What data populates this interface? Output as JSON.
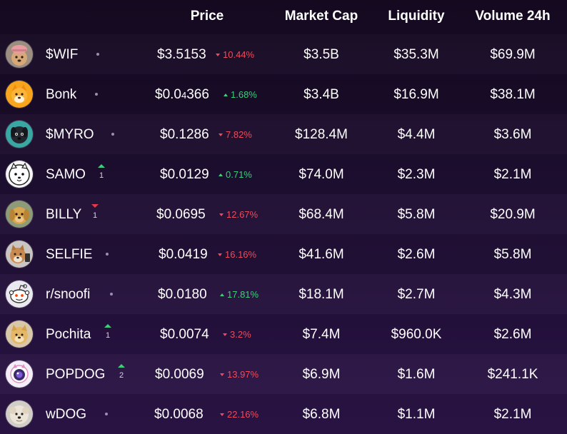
{
  "header": {
    "price": "Price",
    "market_cap": "Market Cap",
    "liquidity": "Liquidity",
    "volume": "Volume 24h"
  },
  "colors": {
    "up": "#3ccf7a",
    "down": "#ee4b5b",
    "neutral_dot": "#9a8fb0"
  },
  "rows": [
    {
      "name": "$WIF",
      "avatar_icon": "dog-with-hat-icon",
      "rank_change": {
        "dir": "none",
        "value": ""
      },
      "price_main": "$3.5153",
      "price_sub": "",
      "price_tail": "",
      "change_dir": "down",
      "change": "10.44%",
      "market_cap": "$3.5B",
      "liquidity": "$35.3M",
      "volume": "$69.9M"
    },
    {
      "name": "Bonk",
      "avatar_icon": "shiba-dog-icon",
      "rank_change": {
        "dir": "none",
        "value": ""
      },
      "price_main": "$0.0",
      "price_sub": "4",
      "price_tail": "366",
      "change_dir": "up",
      "change": "1.68%",
      "market_cap": "$3.4B",
      "liquidity": "$16.9M",
      "volume": "$38.1M"
    },
    {
      "name": "$MYRO",
      "avatar_icon": "black-dog-icon",
      "rank_change": {
        "dir": "none",
        "value": ""
      },
      "price_main": "$0.1286",
      "price_sub": "",
      "price_tail": "",
      "change_dir": "down",
      "change": "7.82%",
      "market_cap": "$128.4M",
      "liquidity": "$4.4M",
      "volume": "$3.6M"
    },
    {
      "name": "SAMO",
      "avatar_icon": "samoyed-dog-icon",
      "rank_change": {
        "dir": "up",
        "value": "1"
      },
      "price_main": "$0.0129",
      "price_sub": "",
      "price_tail": "",
      "change_dir": "up",
      "change": "0.71%",
      "market_cap": "$74.0M",
      "liquidity": "$2.3M",
      "volume": "$2.1M"
    },
    {
      "name": "BILLY",
      "avatar_icon": "golden-dog-icon",
      "rank_change": {
        "dir": "down",
        "value": "1"
      },
      "price_main": "$0.0695",
      "price_sub": "",
      "price_tail": "",
      "change_dir": "down",
      "change": "12.67%",
      "market_cap": "$68.4M",
      "liquidity": "$5.8M",
      "volume": "$20.9M"
    },
    {
      "name": "SELFIE",
      "avatar_icon": "dog-selfie-icon",
      "rank_change": {
        "dir": "none",
        "value": ""
      },
      "price_main": "$0.0419",
      "price_sub": "",
      "price_tail": "",
      "change_dir": "down",
      "change": "16.16%",
      "market_cap": "$41.6M",
      "liquidity": "$2.6M",
      "volume": "$5.8M"
    },
    {
      "name": "r/snoofi",
      "avatar_icon": "reddit-alien-icon",
      "rank_change": {
        "dir": "none",
        "value": ""
      },
      "price_main": "$0.0180",
      "price_sub": "",
      "price_tail": "",
      "change_dir": "up",
      "change": "17.81%",
      "market_cap": "$18.1M",
      "liquidity": "$2.7M",
      "volume": "$4.3M"
    },
    {
      "name": "Pochita",
      "avatar_icon": "cream-dog-icon",
      "rank_change": {
        "dir": "up",
        "value": "1"
      },
      "price_main": "$0.0074",
      "price_sub": "",
      "price_tail": "",
      "change_dir": "down",
      "change": "3.2%",
      "market_cap": "$7.4M",
      "liquidity": "$960.0K",
      "volume": "$2.6M"
    },
    {
      "name": "POPDOG",
      "avatar_icon": "purple-dog-icon",
      "rank_change": {
        "dir": "up",
        "value": "2"
      },
      "price_main": "$0.0069",
      "price_sub": "",
      "price_tail": "",
      "change_dir": "down",
      "change": "13.97%",
      "market_cap": "$6.9M",
      "liquidity": "$1.6M",
      "volume": "$241.1K"
    },
    {
      "name": "wDOG",
      "avatar_icon": "fluffy-dog-icon",
      "rank_change": {
        "dir": "none",
        "value": ""
      },
      "price_main": "$0.0068",
      "price_sub": "",
      "price_tail": "",
      "change_dir": "down",
      "change": "22.16%",
      "market_cap": "$6.8M",
      "liquidity": "$1.1M",
      "volume": "$2.1M"
    }
  ]
}
